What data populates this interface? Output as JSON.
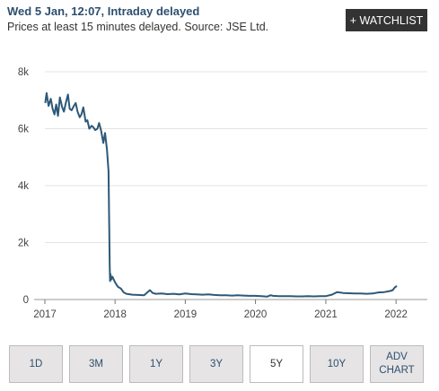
{
  "header": {
    "title": "Wed 5 Jan, 12:07, Intraday delayed",
    "subtitle": "Prices at least 15 minutes delayed. Source: JSE Ltd.",
    "watchlist_label": "+ WATCHLIST"
  },
  "colors": {
    "line": "#2d5878",
    "grid": "#e3e3e3",
    "accent": "#2d4f6f"
  },
  "chart_data": {
    "type": "line",
    "title": "",
    "xlabel": "",
    "ylabel": "",
    "xlim": [
      "2017-01-01",
      "2022-01-05"
    ],
    "ylim": [
      0,
      8000
    ],
    "grid": true,
    "x_ticks": [
      "2017",
      "2018",
      "2019",
      "2020",
      "2021",
      "2022"
    ],
    "y_ticks": [
      {
        "value": 0,
        "label": "0"
      },
      {
        "value": 2000,
        "label": "2k"
      },
      {
        "value": 4000,
        "label": "4k"
      },
      {
        "value": 6000,
        "label": "6k"
      },
      {
        "value": 8000,
        "label": "8k"
      }
    ],
    "series": [
      {
        "x": [
          "2017-01-03",
          "2017-01-10",
          "2017-01-20",
          "2017-02-01",
          "2017-02-10",
          "2017-02-20",
          "2017-03-01",
          "2017-03-10",
          "2017-03-20",
          "2017-04-01",
          "2017-04-10",
          "2017-04-20",
          "2017-05-01",
          "2017-05-10",
          "2017-05-20",
          "2017-06-01",
          "2017-06-10",
          "2017-06-20",
          "2017-07-01",
          "2017-07-10",
          "2017-07-20",
          "2017-08-01",
          "2017-08-10",
          "2017-08-20",
          "2017-09-01",
          "2017-09-10",
          "2017-09-20",
          "2017-10-01",
          "2017-10-10",
          "2017-10-20",
          "2017-11-01",
          "2017-11-10",
          "2017-11-20",
          "2017-11-28",
          "2017-12-01",
          "2017-12-04",
          "2017-12-06",
          "2017-12-08",
          "2017-12-12",
          "2017-12-18",
          "2018-01-01",
          "2018-01-15",
          "2018-02-01",
          "2018-02-15",
          "2018-03-01",
          "2018-04-01",
          "2018-05-01",
          "2018-06-01",
          "2018-07-01",
          "2018-07-15",
          "2018-08-01",
          "2018-09-01",
          "2018-10-01",
          "2018-11-01",
          "2018-12-01",
          "2019-01-01",
          "2019-02-01",
          "2019-03-01",
          "2019-04-01",
          "2019-05-01",
          "2019-06-01",
          "2019-07-01",
          "2019-08-01",
          "2019-09-01",
          "2019-10-01",
          "2019-11-01",
          "2019-12-01",
          "2020-01-01",
          "2020-02-01",
          "2020-03-01",
          "2020-03-20",
          "2020-04-01",
          "2020-05-01",
          "2020-06-01",
          "2020-07-01",
          "2020-08-01",
          "2020-09-01",
          "2020-10-01",
          "2020-11-01",
          "2020-12-01",
          "2021-01-01",
          "2021-02-01",
          "2021-03-01",
          "2021-04-01",
          "2021-05-01",
          "2021-06-01",
          "2021-07-01",
          "2021-08-01",
          "2021-09-01",
          "2021-10-01",
          "2021-11-01",
          "2021-12-01",
          "2021-12-15",
          "2021-12-25",
          "2022-01-05"
        ],
        "values": [
          6900,
          7250,
          6800,
          7050,
          6700,
          6500,
          6850,
          6450,
          7100,
          6750,
          6600,
          6900,
          7200,
          6700,
          6650,
          6800,
          6900,
          6600,
          6400,
          6500,
          6750,
          6250,
          6300,
          6000,
          6100,
          6050,
          5950,
          6000,
          6200,
          5950,
          5500,
          5850,
          5250,
          4500,
          3000,
          1200,
          650,
          900,
          700,
          800,
          600,
          450,
          380,
          250,
          200,
          170,
          160,
          150,
          330,
          230,
          200,
          210,
          190,
          200,
          180,
          210,
          190,
          180,
          170,
          180,
          160,
          150,
          150,
          140,
          150,
          140,
          130,
          130,
          120,
          100,
          150,
          130,
          120,
          120,
          115,
          110,
          110,
          120,
          110,
          115,
          120,
          170,
          260,
          230,
          220,
          210,
          210,
          200,
          210,
          250,
          260,
          300,
          330,
          420,
          480
        ]
      }
    ]
  },
  "range_buttons": [
    {
      "label": "1D",
      "active": false
    },
    {
      "label": "3M",
      "active": false
    },
    {
      "label": "1Y",
      "active": false
    },
    {
      "label": "3Y",
      "active": false
    },
    {
      "label": "5Y",
      "active": true
    },
    {
      "label": "10Y",
      "active": false
    },
    {
      "label": "ADV CHART",
      "line1": "ADV",
      "line2": "CHART",
      "active": false
    }
  ]
}
